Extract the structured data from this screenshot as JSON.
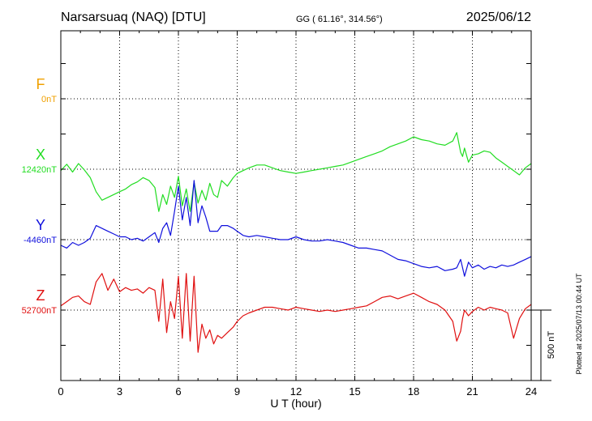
{
  "header": {
    "station": "Narsarsuaq (NAQ)  [DTU]",
    "coords": "GG ( 61.16°, 314.56°)",
    "date": "2025/06/12"
  },
  "plotted_note": "Plotted at 2025/07/13 00:44 UT",
  "scale_label": "500 nT",
  "chart_data": {
    "type": "line",
    "title": "Narsarsuaq (NAQ)  [DTU]",
    "xlabel": "U T (hour)",
    "x_ticks": [
      "0",
      "3",
      "6",
      "9",
      "12",
      "15",
      "18",
      "21",
      "24"
    ],
    "xlim": [
      0,
      24
    ],
    "scale_nT": 500,
    "grid": true,
    "series": [
      {
        "name": "F",
        "baseline_label": "0nT",
        "color": "#f0a000",
        "x": [],
        "y": []
      },
      {
        "name": "X",
        "baseline_label": "12420nT",
        "color": "#22dd22",
        "x": [
          0,
          0.3,
          0.6,
          0.9,
          1.2,
          1.5,
          1.8,
          2.1,
          2.4,
          2.7,
          3.0,
          3.3,
          3.6,
          3.9,
          4.2,
          4.5,
          4.8,
          5.0,
          5.2,
          5.4,
          5.6,
          5.8,
          6.0,
          6.2,
          6.4,
          6.6,
          6.8,
          7.0,
          7.2,
          7.4,
          7.6,
          7.8,
          8.0,
          8.2,
          8.5,
          8.8,
          9.0,
          9.3,
          9.6,
          10.0,
          10.4,
          10.8,
          11.2,
          11.6,
          12.0,
          12.4,
          12.8,
          13.2,
          13.6,
          14.0,
          14.4,
          14.8,
          15.2,
          15.6,
          16.0,
          16.4,
          16.8,
          17.2,
          17.6,
          18.0,
          18.4,
          18.8,
          19.2,
          19.6,
          20.0,
          20.2,
          20.4,
          20.5,
          20.6,
          20.8,
          21.0,
          21.3,
          21.6,
          21.9,
          22.2,
          22.5,
          22.8,
          23.1,
          23.4,
          23.7,
          24.0
        ],
        "y": [
          -10,
          35,
          -20,
          40,
          -5,
          -60,
          -160,
          -220,
          -200,
          -180,
          -160,
          -140,
          -110,
          -90,
          -60,
          -80,
          -130,
          -300,
          -180,
          -250,
          -120,
          -200,
          -50,
          -260,
          -140,
          -300,
          -90,
          -240,
          -150,
          -220,
          -100,
          -180,
          -200,
          -80,
          -120,
          -60,
          -30,
          -10,
          10,
          30,
          30,
          10,
          -10,
          -20,
          -30,
          -20,
          -10,
          0,
          10,
          20,
          30,
          50,
          70,
          90,
          110,
          130,
          160,
          180,
          200,
          230,
          210,
          200,
          180,
          170,
          200,
          260,
          120,
          90,
          150,
          50,
          100,
          110,
          130,
          120,
          80,
          50,
          20,
          -10,
          -40,
          10,
          40
        ]
      },
      {
        "name": "Y",
        "baseline_label": "-4460nT",
        "color": "#1010dd",
        "x": [
          0,
          0.3,
          0.6,
          0.9,
          1.2,
          1.5,
          1.8,
          2.1,
          2.4,
          2.7,
          3.0,
          3.3,
          3.6,
          3.9,
          4.2,
          4.5,
          4.8,
          5.0,
          5.2,
          5.4,
          5.6,
          5.8,
          6.0,
          6.2,
          6.4,
          6.6,
          6.8,
          7.0,
          7.2,
          7.4,
          7.6,
          7.8,
          8.0,
          8.2,
          8.5,
          8.8,
          9.0,
          9.3,
          9.6,
          10.0,
          10.4,
          10.8,
          11.2,
          11.6,
          12.0,
          12.4,
          12.8,
          13.2,
          13.6,
          14.0,
          14.4,
          14.8,
          15.2,
          15.6,
          16.0,
          16.4,
          16.8,
          17.2,
          17.6,
          18.0,
          18.4,
          18.8,
          19.2,
          19.6,
          20.0,
          20.2,
          20.4,
          20.5,
          20.6,
          20.8,
          21.0,
          21.3,
          21.6,
          21.9,
          22.2,
          22.5,
          22.8,
          23.1,
          23.4,
          23.7,
          24.0
        ],
        "y": [
          -40,
          -60,
          -20,
          -40,
          -20,
          10,
          100,
          80,
          60,
          40,
          20,
          20,
          0,
          10,
          -10,
          20,
          50,
          -20,
          80,
          120,
          30,
          200,
          380,
          140,
          300,
          100,
          420,
          120,
          240,
          160,
          60,
          60,
          60,
          100,
          100,
          80,
          60,
          30,
          20,
          30,
          20,
          10,
          0,
          0,
          20,
          0,
          -10,
          -10,
          0,
          -10,
          -20,
          -40,
          -60,
          -60,
          -70,
          -80,
          -110,
          -140,
          -150,
          -170,
          -190,
          -200,
          -190,
          -220,
          -210,
          -200,
          -140,
          -200,
          -260,
          -160,
          -200,
          -180,
          -210,
          -190,
          -200,
          -180,
          -190,
          -180,
          -160,
          -140,
          -120
        ]
      },
      {
        "name": "Z",
        "baseline_label": "52700nT",
        "color": "#e01010",
        "x": [
          0,
          0.3,
          0.6,
          0.9,
          1.2,
          1.5,
          1.8,
          2.1,
          2.4,
          2.7,
          3.0,
          3.3,
          3.6,
          3.9,
          4.2,
          4.5,
          4.8,
          5.0,
          5.2,
          5.4,
          5.6,
          5.8,
          6.0,
          6.2,
          6.4,
          6.6,
          6.8,
          7.0,
          7.2,
          7.4,
          7.6,
          7.8,
          8.0,
          8.2,
          8.5,
          8.8,
          9.0,
          9.3,
          9.6,
          10.0,
          10.4,
          10.8,
          11.2,
          11.6,
          12.0,
          12.4,
          12.8,
          13.2,
          13.6,
          14.0,
          14.4,
          14.8,
          15.2,
          15.6,
          16.0,
          16.4,
          16.8,
          17.2,
          17.6,
          18.0,
          18.4,
          18.8,
          19.2,
          19.6,
          20.0,
          20.2,
          20.4,
          20.5,
          20.6,
          20.8,
          21.0,
          21.3,
          21.6,
          21.9,
          22.2,
          22.5,
          22.8,
          23.1,
          23.4,
          23.7,
          24.0
        ],
        "y": [
          30,
          60,
          90,
          100,
          60,
          40,
          200,
          260,
          140,
          220,
          130,
          160,
          140,
          150,
          120,
          160,
          140,
          -80,
          220,
          -160,
          60,
          -60,
          240,
          -200,
          260,
          -220,
          240,
          -300,
          -100,
          -200,
          -140,
          -240,
          -180,
          -200,
          -160,
          -120,
          -80,
          -40,
          -20,
          0,
          20,
          20,
          10,
          0,
          20,
          10,
          0,
          -10,
          0,
          -10,
          0,
          10,
          20,
          30,
          60,
          90,
          100,
          80,
          100,
          120,
          90,
          60,
          40,
          0,
          -80,
          -220,
          -150,
          -60,
          0,
          -40,
          -10,
          20,
          0,
          20,
          10,
          0,
          -20,
          -200,
          -60,
          10,
          40
        ]
      }
    ]
  }
}
